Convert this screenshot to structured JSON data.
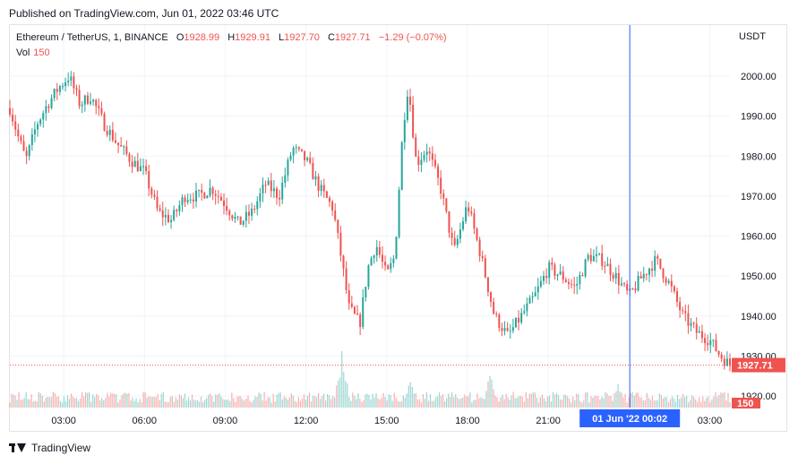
{
  "published_text": "Published on TradingView.com, Jun 01, 2022 03:46 UTC",
  "footer_brand": "TradingView",
  "legend": {
    "symbol": "Ethereum / TetherUS, 1, BINANCE",
    "open_label": "O",
    "open": "1928.99",
    "high_label": "H",
    "high": "1929.91",
    "low_label": "L",
    "low": "1927.70",
    "close_label": "C",
    "close": "1927.71",
    "change": "−1.29 (−0.07%)",
    "vol_label": "Vol",
    "vol": "150"
  },
  "colors": {
    "up": "#26a69a",
    "down": "#ef5350",
    "crosshair": "#2962ff",
    "time_badge": "#2962ff"
  },
  "chart_data": {
    "type": "candlestick",
    "symbol": "ETHUSDT",
    "interval": "1",
    "currency": "USDT",
    "y_ticks": [
      1920,
      1930,
      1940,
      1950,
      1960,
      1970,
      1980,
      1990,
      2000
    ],
    "ylim": [
      1920,
      2005
    ],
    "x_ticks": [
      "03:00",
      "06:00",
      "09:00",
      "12:00",
      "15:00",
      "18:00",
      "21:00",
      "03:00"
    ],
    "crosshair_label": "01 Jun '22   00:02",
    "last_price": 1927.71,
    "last_price_label": "1927.71",
    "last_volume_label": "150",
    "x_start_hour": 1.0,
    "x_end_hour": 27.75,
    "crosshair_hour": 24.03,
    "price_path": [
      [
        1.0,
        1992
      ],
      [
        1.3,
        1985
      ],
      [
        1.6,
        1979
      ],
      [
        2.0,
        1988
      ],
      [
        2.4,
        1993
      ],
      [
        2.8,
        1997
      ],
      [
        3.2,
        2000
      ],
      [
        3.6,
        1993
      ],
      [
        4.0,
        1995
      ],
      [
        4.5,
        1988
      ],
      [
        5.0,
        1983
      ],
      [
        5.5,
        1979
      ],
      [
        6.0,
        1976
      ],
      [
        6.5,
        1966
      ],
      [
        7.0,
        1964
      ],
      [
        7.5,
        1970
      ],
      [
        8.0,
        1970
      ],
      [
        8.5,
        1972
      ],
      [
        9.0,
        1968
      ],
      [
        9.5,
        1963
      ],
      [
        10.0,
        1966
      ],
      [
        10.5,
        1973
      ],
      [
        11.0,
        1970
      ],
      [
        11.5,
        1982
      ],
      [
        12.0,
        1979
      ],
      [
        12.5,
        1972
      ],
      [
        13.0,
        1967
      ],
      [
        13.3,
        1955
      ],
      [
        13.6,
        1942
      ],
      [
        14.0,
        1938
      ],
      [
        14.3,
        1952
      ],
      [
        14.6,
        1958
      ],
      [
        15.0,
        1950
      ],
      [
        15.3,
        1955
      ],
      [
        15.6,
        1987
      ],
      [
        15.8,
        1998
      ],
      [
        16.1,
        1978
      ],
      [
        16.5,
        1982
      ],
      [
        17.0,
        1972
      ],
      [
        17.5,
        1956
      ],
      [
        18.0,
        1968
      ],
      [
        18.5,
        1955
      ],
      [
        19.0,
        1940
      ],
      [
        19.5,
        1935
      ],
      [
        20.0,
        1940
      ],
      [
        20.5,
        1945
      ],
      [
        21.0,
        1952
      ],
      [
        21.5,
        1950
      ],
      [
        22.0,
        1947
      ],
      [
        22.5,
        1955
      ],
      [
        23.0,
        1954
      ],
      [
        23.5,
        1950
      ],
      [
        24.0,
        1945
      ],
      [
        24.5,
        1950
      ],
      [
        25.0,
        1954
      ],
      [
        25.5,
        1948
      ],
      [
        26.0,
        1940
      ],
      [
        26.5,
        1936
      ],
      [
        27.0,
        1934
      ],
      [
        27.4,
        1930
      ],
      [
        27.75,
        1927.71
      ]
    ],
    "volume_spikes": [
      [
        13.35,
        1
      ],
      [
        15.9,
        0.55
      ],
      [
        18.85,
        0.6
      ],
      [
        23.6,
        0.45
      ]
    ]
  }
}
